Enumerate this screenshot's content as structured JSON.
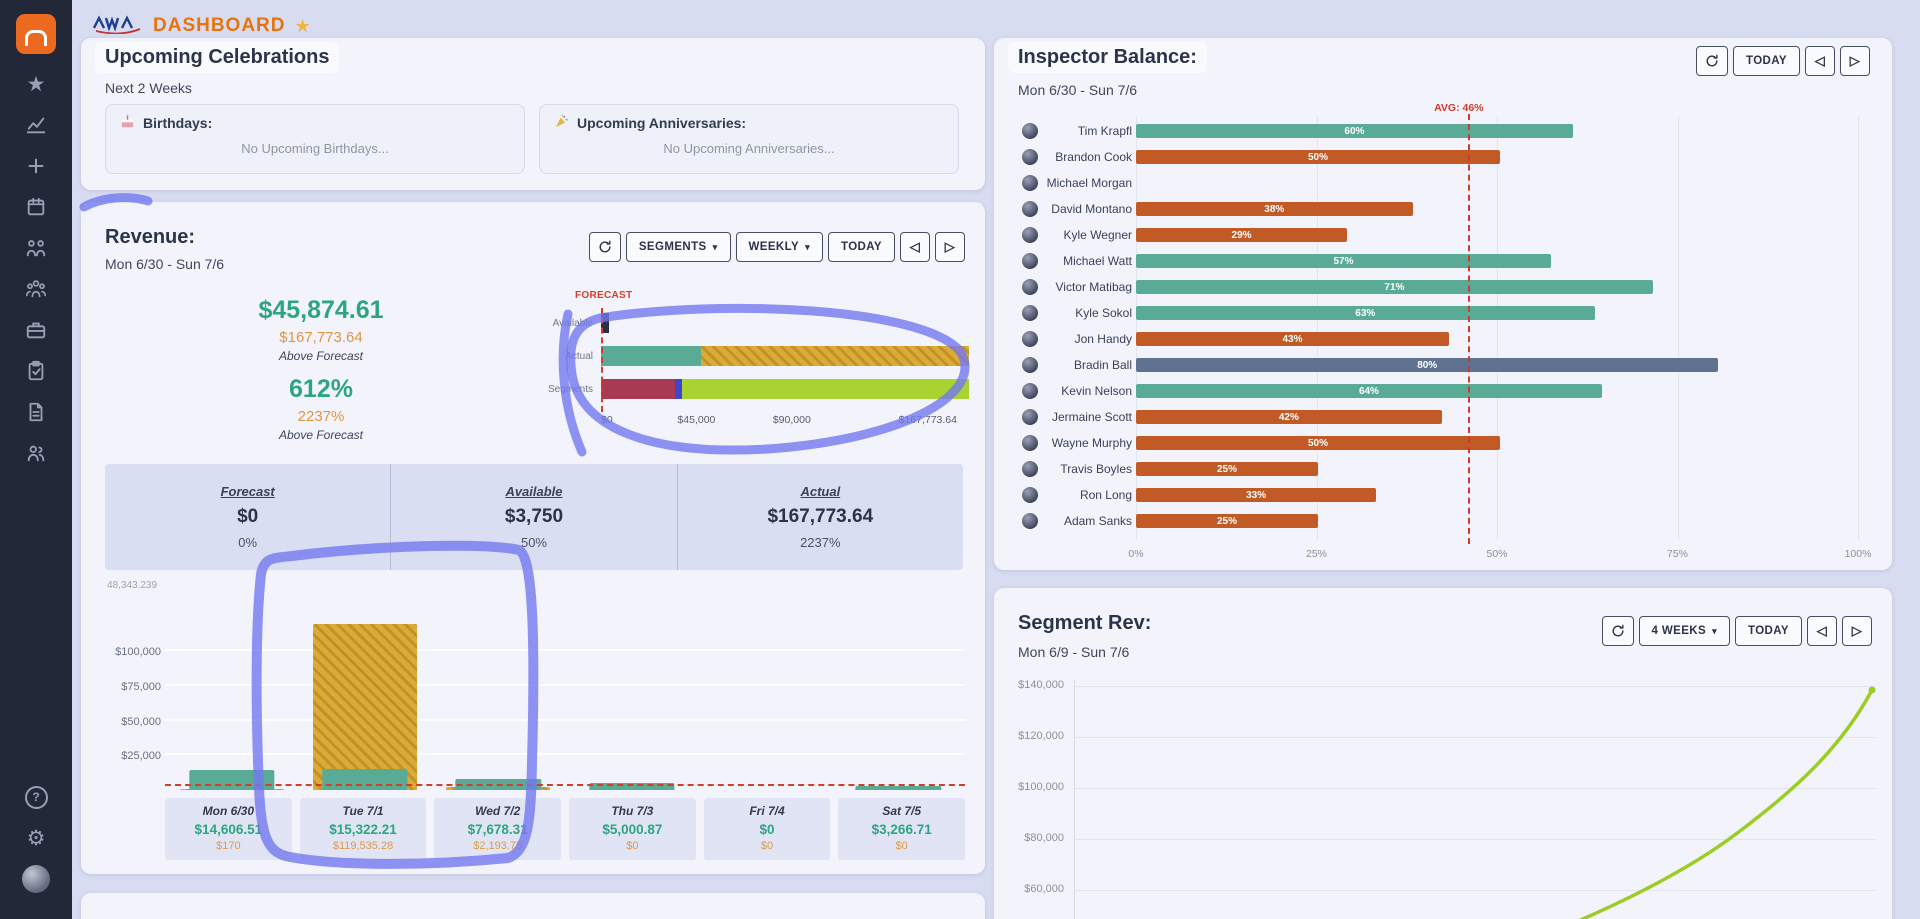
{
  "app": {
    "title": "DASHBOARD"
  },
  "sidebar": {
    "main_icons": [
      "star",
      "line-chart",
      "plus",
      "calendar",
      "people-arrows",
      "user-group",
      "briefcase",
      "clipboard-check",
      "document",
      "users"
    ],
    "footer_icons": [
      "help",
      "settings",
      "user-avatar"
    ]
  },
  "celebrations": {
    "title": "Upcoming Celebrations",
    "subtitle": "Next 2 Weeks",
    "panels": [
      {
        "icon": "birthday-cake-icon",
        "label": "Birthdays:",
        "empty_text": "No Upcoming Birthdays..."
      },
      {
        "icon": "party-popper-icon",
        "label": "Upcoming Anniversaries:",
        "empty_text": "No Upcoming Anniversaries..."
      }
    ]
  },
  "revenue": {
    "title": "Revenue:",
    "date_range": "Mon 6/30 - Sun 7/6",
    "controls": {
      "segments_label": "SEGMENTS",
      "period_label": "WEEKLY",
      "today_label": "TODAY",
      "prev_icon": "◁",
      "next_icon": "▷"
    },
    "stats": {
      "actual_week": "$45,874.61",
      "forecast_total": "$167,773.64",
      "above_label_1": "Above Forecast",
      "pct_week": "612%",
      "pct_total": "2237%",
      "above_label_2": "Above Forecast"
    },
    "forecast_chart": {
      "label": "FORECAST",
      "rows": [
        {
          "name": "Available",
          "segments": [
            {
              "color": "#2c3246",
              "pct": 2.2
            }
          ]
        },
        {
          "name": "Actual",
          "segments": [
            {
              "color": "#5aab95",
              "pct": 27.3
            },
            {
              "color": "gold-hatch",
              "pct": 72.7
            }
          ]
        },
        {
          "name": "Segments",
          "segments": [
            {
              "color": "#a93a53",
              "pct": 20
            },
            {
              "color": "#4144ce",
              "pct": 2
            },
            {
              "color": "#a8d331",
              "pct": 78
            }
          ]
        }
      ],
      "x_labels": [
        "$0",
        "$45,000",
        "$90,000",
        "$167,773.64"
      ],
      "x_positions": [
        0,
        26.8,
        53.6,
        100
      ]
    },
    "summary": [
      {
        "label": "Forecast",
        "value": "$0",
        "pct": "0%"
      },
      {
        "label": "Available",
        "value": "$3,750",
        "pct": "50%"
      },
      {
        "label": "Actual",
        "value": "$167,773.64",
        "pct": "2237%"
      }
    ],
    "chart_data": {
      "type": "bar",
      "max_label": "48,343.239",
      "y_ticks": [
        "$100,000",
        "$75,000",
        "$50,000",
        "$25,000"
      ],
      "y_tick_values": [
        100000,
        75000,
        50000,
        25000
      ],
      "days": [
        {
          "day": "Mon 6/30",
          "actual": 14606.51,
          "forecast": 170,
          "actual_label": "$14,606.51",
          "forecast_label": "$170"
        },
        {
          "day": "Tue 7/1",
          "actual": 15322.21,
          "forecast": 119535.28,
          "actual_label": "$15,322.21",
          "forecast_label": "$119,535.28"
        },
        {
          "day": "Wed 7/2",
          "actual": 7678.31,
          "forecast": 2193.75,
          "actual_label": "$7,678.31",
          "forecast_label": "$2,193.75"
        },
        {
          "day": "Thu 7/3",
          "actual": 5000.87,
          "forecast": 0,
          "actual_label": "$5,000.87",
          "forecast_label": "$0"
        },
        {
          "day": "Fri 7/4",
          "actual": 0,
          "forecast": 0,
          "actual_label": "$0",
          "forecast_label": "$0"
        },
        {
          "day": "Sat 7/5",
          "actual": 3266.71,
          "forecast": 0,
          "actual_label": "$3,266.71",
          "forecast_label": "$0"
        }
      ]
    }
  },
  "inspector": {
    "title": "Inspector Balance:",
    "date_range": "Mon 6/30 - Sun 7/6",
    "controls": {
      "today_label": "TODAY",
      "prev_icon": "◁",
      "next_icon": "▷"
    },
    "avg_label": "AVG: 46%",
    "avg_pct": 46,
    "x_labels": [
      "0%",
      "25%",
      "50%",
      "75%",
      "100%"
    ],
    "chart_data": {
      "type": "bar-horizontal",
      "rows": [
        {
          "name": "Tim Krapfl",
          "pct": 60,
          "color": "teal"
        },
        {
          "name": "Brandon Cook",
          "pct": 50,
          "color": "orange"
        },
        {
          "name": "Michael Morgan",
          "pct": 0,
          "color": "none"
        },
        {
          "name": "David Montano",
          "pct": 38,
          "color": "orange"
        },
        {
          "name": "Kyle Wegner",
          "pct": 29,
          "color": "orange"
        },
        {
          "name": "Michael Watt",
          "pct": 57,
          "color": "teal"
        },
        {
          "name": "Victor Matibag",
          "pct": 71,
          "color": "teal"
        },
        {
          "name": "Kyle Sokol",
          "pct": 63,
          "color": "teal"
        },
        {
          "name": "Jon Handy",
          "pct": 43,
          "color": "orange"
        },
        {
          "name": "Bradin Ball",
          "pct": 80,
          "color": "slate"
        },
        {
          "name": "Kevin Nelson",
          "pct": 64,
          "color": "teal"
        },
        {
          "name": "Jermaine Scott",
          "pct": 42,
          "color": "orange"
        },
        {
          "name": "Wayne Murphy",
          "pct": 50,
          "color": "orange"
        },
        {
          "name": "Travis Boyles",
          "pct": 25,
          "color": "orange"
        },
        {
          "name": "Ron Long",
          "pct": 33,
          "color": "orange"
        },
        {
          "name": "Adam Sanks",
          "pct": 25,
          "color": "orange"
        }
      ]
    }
  },
  "segment_rev": {
    "title": "Segment Rev:",
    "date_range": "Mon 6/9 - Sun 7/6",
    "controls": {
      "period_label": "4 WEEKS",
      "today_label": "TODAY",
      "prev_icon": "◁",
      "next_icon": "▷"
    },
    "chart_data": {
      "type": "line",
      "y_ticks": [
        "$140,000",
        "$120,000",
        "$100,000",
        "$80,000",
        "$60,000"
      ],
      "series": [
        {
          "name": "Segment Revenue",
          "color": "#9ccd25",
          "points_visible": [
            [
              0.61,
              55000
            ],
            [
              0.73,
              72000
            ],
            [
              0.84,
              95000
            ],
            [
              0.92,
              118000
            ],
            [
              0.985,
              139000
            ]
          ]
        }
      ]
    }
  }
}
